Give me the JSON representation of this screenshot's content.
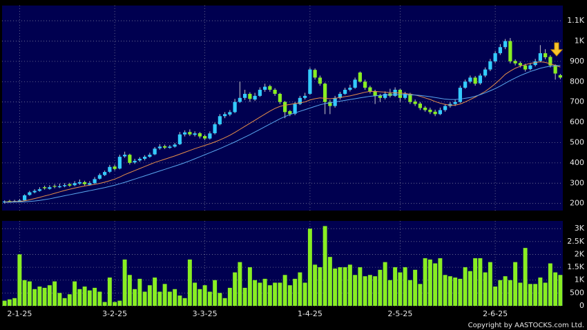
{
  "chart_data": {
    "type": "candlestick",
    "categories": [
      null,
      null,
      null,
      "2-1-25",
      null,
      null,
      null,
      null,
      null,
      null,
      null,
      null,
      null,
      null,
      null,
      null,
      null,
      null,
      null,
      null,
      null,
      null,
      "3-2-25",
      null,
      null,
      null,
      null,
      null,
      null,
      null,
      null,
      null,
      null,
      null,
      null,
      null,
      null,
      null,
      null,
      null,
      "3-3-25",
      null,
      null,
      null,
      null,
      null,
      null,
      null,
      null,
      null,
      null,
      null,
      null,
      null,
      null,
      null,
      null,
      null,
      null,
      null,
      null,
      "1-4-25",
      null,
      null,
      null,
      null,
      null,
      null,
      null,
      null,
      null,
      null,
      null,
      null,
      null,
      null,
      null,
      null,
      null,
      "2-5-25",
      null,
      null,
      null,
      null,
      null,
      null,
      null,
      null,
      null,
      null,
      null,
      null,
      null,
      null,
      null,
      null,
      null,
      null,
      "2-6-25",
      null,
      null,
      null,
      null,
      null,
      null,
      null,
      null,
      null,
      null,
      null,
      null,
      null
    ],
    "open": [
      205,
      212,
      208,
      210,
      215,
      242,
      255,
      262,
      280,
      272,
      286,
      280,
      285,
      295,
      290,
      298,
      305,
      292,
      300,
      322,
      340,
      356,
      382,
      372,
      432,
      440,
      402,
      412,
      420,
      430,
      442,
      472,
      482,
      474,
      480,
      492,
      540,
      552,
      538,
      546,
      532,
      520,
      546,
      590,
      630,
      638,
      650,
      700,
      720,
      740,
      712,
      730,
      760,
      778,
      760,
      740,
      700,
      655,
      642,
      690,
      720,
      740,
      858,
      820,
      790,
      700,
      680,
      720,
      740,
      760,
      770,
      845,
      800,
      772,
      752,
      732,
      720,
      742,
      730,
      760,
      720,
      740,
      702,
      692,
      672,
      662,
      652,
      640,
      660,
      680,
      690,
      700,
      770,
      800,
      820,
      792,
      830,
      860,
      900,
      940,
      970,
      1000,
      902,
      892,
      880,
      862,
      882,
      902,
      940,
      922,
      882,
      832
    ],
    "high": [
      215,
      218,
      218,
      222,
      245,
      262,
      270,
      280,
      288,
      290,
      295,
      298,
      300,
      302,
      310,
      318,
      312,
      310,
      330,
      348,
      362,
      390,
      392,
      440,
      455,
      445,
      420,
      428,
      438,
      450,
      478,
      492,
      490,
      488,
      498,
      552,
      560,
      565,
      555,
      552,
      540,
      555,
      598,
      640,
      650,
      660,
      715,
      800,
      760,
      748,
      745,
      772,
      790,
      785,
      768,
      745,
      705,
      660,
      700,
      730,
      745,
      870,
      865,
      830,
      795,
      710,
      730,
      750,
      770,
      785,
      820,
      850,
      810,
      780,
      760,
      740,
      752,
      765,
      772,
      765,
      750,
      745,
      712,
      700,
      680,
      672,
      662,
      672,
      690,
      700,
      712,
      780,
      810,
      830,
      828,
      840,
      870,
      912,
      950,
      985,
      1010,
      1015,
      910,
      900,
      888,
      892,
      912,
      980,
      960,
      930,
      885,
      838
    ],
    "low": [
      200,
      205,
      205,
      208,
      212,
      238,
      250,
      258,
      268,
      268,
      275,
      276,
      280,
      282,
      285,
      292,
      288,
      288,
      296,
      318,
      335,
      350,
      362,
      368,
      425,
      392,
      395,
      405,
      412,
      425,
      438,
      465,
      468,
      470,
      475,
      488,
      530,
      532,
      530,
      520,
      512,
      515,
      540,
      585,
      620,
      630,
      645,
      695,
      710,
      700,
      705,
      725,
      750,
      750,
      730,
      690,
      620,
      630,
      635,
      685,
      712,
      735,
      810,
      780,
      640,
      640,
      672,
      712,
      735,
      752,
      765,
      795,
      760,
      742,
      690,
      700,
      712,
      722,
      725,
      700,
      712,
      690,
      680,
      660,
      652,
      640,
      630,
      635,
      652,
      672,
      680,
      695,
      765,
      792,
      780,
      785,
      822,
      852,
      892,
      932,
      960,
      890,
      880,
      870,
      850,
      855,
      875,
      895,
      910,
      870,
      810,
      812
    ],
    "close": [
      210,
      210,
      212,
      215,
      240,
      255,
      262,
      270,
      275,
      280,
      282,
      285,
      290,
      288,
      300,
      305,
      295,
      300,
      320,
      340,
      355,
      380,
      370,
      430,
      440,
      400,
      410,
      420,
      430,
      440,
      470,
      480,
      475,
      480,
      490,
      540,
      550,
      540,
      545,
      530,
      520,
      545,
      590,
      630,
      640,
      650,
      700,
      720,
      740,
      715,
      730,
      760,
      775,
      760,
      740,
      700,
      650,
      640,
      690,
      720,
      730,
      860,
      820,
      790,
      700,
      680,
      720,
      740,
      760,
      770,
      810,
      800,
      770,
      750,
      730,
      720,
      740,
      730,
      760,
      720,
      740,
      700,
      690,
      670,
      660,
      650,
      640,
      660,
      680,
      690,
      700,
      770,
      800,
      820,
      790,
      830,
      860,
      900,
      940,
      970,
      1000,
      900,
      890,
      880,
      860,
      880,
      900,
      940,
      920,
      880,
      840,
      820
    ],
    "up_color": "#33ccff",
    "down_color": "#88ee22",
    "moving_averages": [
      {
        "color": "#e8904a",
        "values": [
          208,
          208,
          209,
          210,
          213,
          218,
          224,
          230,
          237,
          243,
          250,
          257,
          264,
          270,
          276,
          281,
          286,
          290,
          294,
          299,
          305,
          312,
          320,
          330,
          342,
          352,
          362,
          372,
          382,
          392,
          402,
          410,
          418,
          426,
          434,
          443,
          452,
          461,
          470,
          478,
          486,
          494,
          503,
          513,
          524,
          536,
          550,
          565,
          580,
          595,
          610,
          625,
          640,
          655,
          668,
          678,
          684,
          688,
          692,
          696,
          700,
          710,
          716,
          720,
          718,
          716,
          718,
          722,
          726,
          730,
          736,
          742,
          748,
          752,
          752,
          750,
          748,
          746,
          745,
          744,
          742,
          738,
          734,
          728,
          720,
          712,
          702,
          694,
          688,
          684,
          684,
          690,
          700,
          712,
          724,
          738,
          752,
          770,
          790,
          812,
          836,
          852,
          866,
          876,
          884,
          890,
          894,
          898,
          895,
          888,
          880,
          872
        ]
      },
      {
        "color": "#5aa8f0",
        "values": [
          206,
          206,
          207,
          207,
          208,
          210,
          212,
          215,
          219,
          223,
          228,
          233,
          238,
          243,
          248,
          253,
          258,
          263,
          268,
          273,
          278,
          284,
          290,
          297,
          304,
          312,
          320,
          328,
          336,
          344,
          352,
          360,
          368,
          376,
          384,
          392,
          401,
          410,
          420,
          430,
          440,
          450,
          460,
          470,
          481,
          492,
          503,
          515,
          527,
          539,
          552,
          565,
          578,
          591,
          604,
          617,
          628,
          638,
          646,
          654,
          662,
          670,
          678,
          686,
          692,
          696,
          700,
          704,
          708,
          712,
          716,
          720,
          724,
          728,
          730,
          732,
          734,
          735,
          736,
          736,
          736,
          735,
          734,
          732,
          729,
          726,
          722,
          718,
          714,
          712,
          712,
          714,
          718,
          722,
          728,
          736,
          745,
          755,
          766,
          778,
          792,
          806,
          818,
          830,
          840,
          850,
          858,
          866,
          872,
          876,
          878,
          880
        ]
      }
    ],
    "ylim": [
      165,
      1175
    ],
    "yticks": [
      200,
      300,
      400,
      500,
      600,
      700,
      800,
      900,
      {
        "value": 1000,
        "label": "1K"
      },
      {
        "value": 1100,
        "label": "1.1K"
      }
    ],
    "grid": true,
    "volume": {
      "color": "#88ee22",
      "values": [
        200,
        250,
        300,
        2000,
        1000,
        950,
        650,
        750,
        700,
        800,
        950,
        500,
        300,
        450,
        950,
        650,
        750,
        600,
        700,
        550,
        150,
        1100,
        150,
        200,
        1800,
        1200,
        650,
        1050,
        550,
        800,
        1100,
        550,
        850,
        550,
        650,
        400,
        300,
        1800,
        900,
        650,
        800,
        550,
        1000,
        500,
        300,
        700,
        1300,
        1700,
        700,
        1500,
        1000,
        900,
        1050,
        800,
        900,
        900,
        1200,
        800,
        1050,
        1300,
        900,
        3000,
        1600,
        1500,
        3100,
        1900,
        1450,
        1500,
        1500,
        1600,
        1200,
        1500,
        1150,
        1200,
        1150,
        1400,
        1700,
        1000,
        1500,
        1300,
        1500,
        1000,
        1400,
        850,
        1850,
        1800,
        1650,
        1850,
        1200,
        1150,
        1100,
        1050,
        1500,
        1350,
        1850,
        1850,
        1300,
        1700,
        750,
        1000,
        1150,
        1000,
        1700,
        900,
        2250,
        850,
        850,
        1100,
        900,
        1650,
        1300,
        1200
      ],
      "ylim": [
        0,
        3300
      ],
      "yticks": [
        0,
        500,
        {
          "value": 1000,
          "label": "1K"
        },
        {
          "value": 1500,
          "label": "1.5K"
        },
        {
          "value": 2000,
          "label": "2K"
        },
        {
          "value": 2500,
          "label": "2.5K"
        },
        {
          "value": 3000,
          "label": "3K"
        }
      ]
    },
    "copyright": "Copyright by AASTOCKS.com Ltd."
  }
}
